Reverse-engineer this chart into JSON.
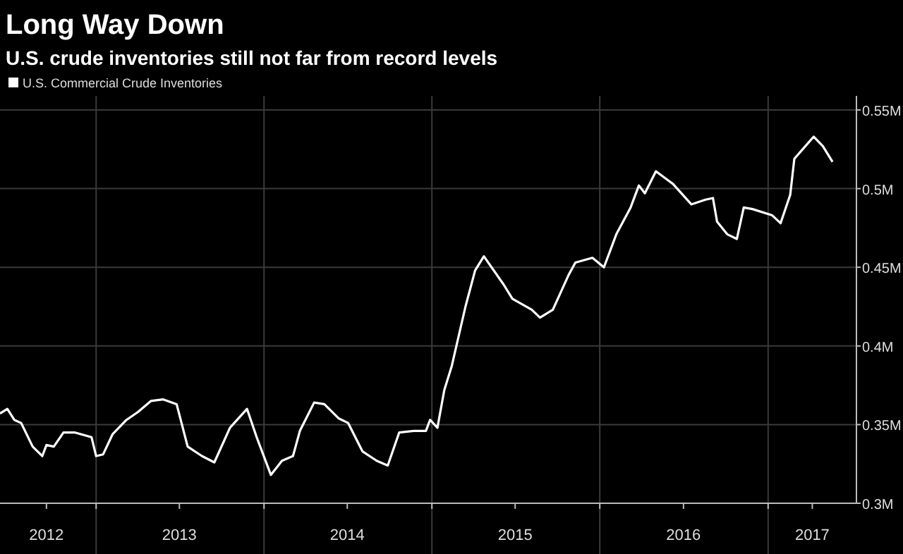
{
  "chart_data": {
    "type": "line",
    "title": "Long Way Down",
    "subtitle": "U.S. crude inventories still not far from record levels",
    "x": [
      "2012-06-06",
      "2012-06-22",
      "2012-07-07",
      "2012-07-22",
      "2012-08-16",
      "2012-09-06",
      "2012-09-15",
      "2012-10-01",
      "2012-10-22",
      "2012-11-15",
      "2012-12-22",
      "2013-01-01",
      "2013-01-16",
      "2013-02-06",
      "2013-03-08",
      "2013-04-02",
      "2013-04-30",
      "2013-05-27",
      "2013-06-25",
      "2013-07-19",
      "2013-08-19",
      "2013-09-15",
      "2013-10-19",
      "2013-11-25",
      "2013-12-16",
      "2014-01-16",
      "2014-02-09",
      "2014-03-05",
      "2014-03-20",
      "2014-04-20",
      "2014-05-12",
      "2014-06-12",
      "2014-07-03",
      "2014-08-03",
      "2014-09-03",
      "2014-09-27",
      "2014-10-22",
      "2014-11-22",
      "2014-12-19",
      "2014-12-28",
      "2015-01-13",
      "2015-01-28",
      "2015-02-13",
      "2015-03-15",
      "2015-04-05",
      "2015-04-24",
      "2015-06-06",
      "2015-06-25",
      "2015-08-06",
      "2015-08-24",
      "2015-09-21",
      "2015-10-25",
      "2015-11-09",
      "2015-12-16",
      "2016-01-10",
      "2016-02-06",
      "2016-03-08",
      "2016-03-26",
      "2016-04-08",
      "2016-05-02",
      "2016-06-08",
      "2016-07-18",
      "2016-08-18",
      "2016-09-03",
      "2016-09-12",
      "2016-10-04",
      "2016-10-25",
      "2016-11-09",
      "2016-11-28",
      "2017-01-10",
      "2017-01-28",
      "2017-02-18",
      "2017-02-27",
      "2017-03-26",
      "2017-04-10",
      "2017-04-30",
      "2017-05-21"
    ],
    "series": [
      {
        "name": "U.S. Commercial Crude Inventories",
        "color": "#ffffff",
        "values": [
          0.357,
          0.36,
          0.353,
          0.351,
          0.336,
          0.33,
          0.337,
          0.336,
          0.345,
          0.345,
          0.342,
          0.33,
          0.331,
          0.344,
          0.353,
          0.358,
          0.365,
          0.366,
          0.363,
          0.336,
          0.33,
          0.326,
          0.348,
          0.36,
          0.342,
          0.318,
          0.327,
          0.33,
          0.346,
          0.364,
          0.363,
          0.354,
          0.351,
          0.333,
          0.327,
          0.324,
          0.345,
          0.346,
          0.346,
          0.353,
          0.348,
          0.372,
          0.387,
          0.425,
          0.448,
          0.457,
          0.439,
          0.43,
          0.423,
          0.418,
          0.423,
          0.445,
          0.453,
          0.456,
          0.45,
          0.471,
          0.488,
          0.502,
          0.497,
          0.511,
          0.503,
          0.49,
          0.493,
          0.494,
          0.479,
          0.471,
          0.468,
          0.488,
          0.487,
          0.483,
          0.478,
          0.496,
          0.519,
          0.528,
          0.533,
          0.527,
          0.517
        ]
      }
    ],
    "xlim": [
      "2012-06-06",
      "2017-07-12"
    ],
    "xticks": [
      {
        "value": "2012-09-15",
        "label": "2012"
      },
      {
        "value": "2013-01-01",
        "label": null
      },
      {
        "value": "2013-07-01",
        "label": "2013"
      },
      {
        "value": "2014-01-01",
        "label": null
      },
      {
        "value": "2014-07-01",
        "label": "2014"
      },
      {
        "value": "2015-01-01",
        "label": null
      },
      {
        "value": "2015-07-01",
        "label": "2015"
      },
      {
        "value": "2016-01-01",
        "label": null
      },
      {
        "value": "2016-07-01",
        "label": "2016"
      },
      {
        "value": "2017-01-01",
        "label": null
      },
      {
        "value": "2017-04-07",
        "label": "2017"
      }
    ],
    "ylim": [
      0.3,
      0.55
    ],
    "yticks": [
      {
        "value": 0.3,
        "label": "0.3M"
      },
      {
        "value": 0.35,
        "label": "0.35M"
      },
      {
        "value": 0.4,
        "label": "0.4M"
      },
      {
        "value": 0.45,
        "label": "0.45M"
      },
      {
        "value": 0.5,
        "label": "0.5M"
      },
      {
        "value": 0.55,
        "label": "0.55M"
      }
    ],
    "grid": true,
    "legend": "top left",
    "line_style": "solid",
    "marker": "none"
  }
}
